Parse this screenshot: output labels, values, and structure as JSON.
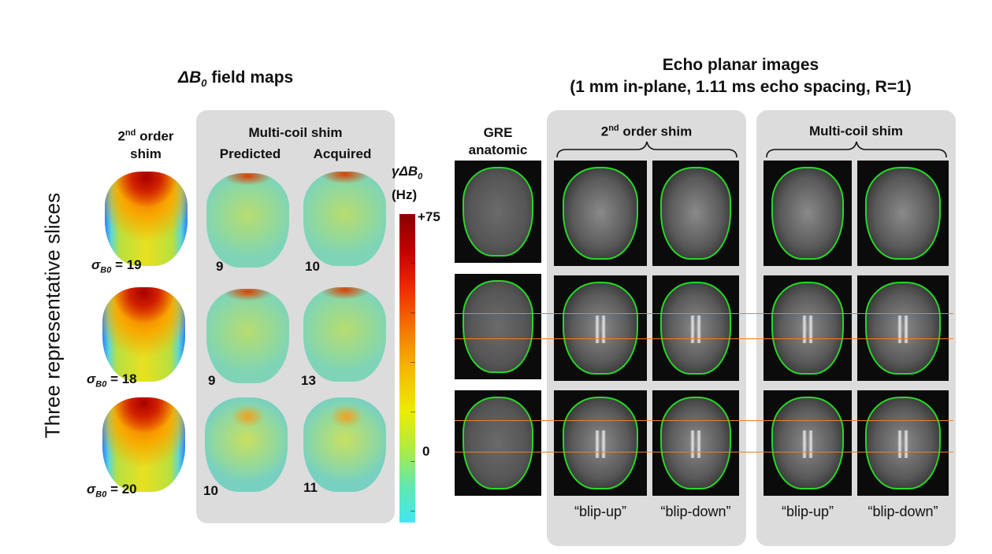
{
  "left_section": {
    "title_symbol": "ΔB",
    "title_sub": "0",
    "title_rest": " field maps",
    "col1_header_a": "2",
    "col1_header_sup": "nd",
    "col1_header_b": " order",
    "col1_header_c": "shim",
    "panel_title": "Multi-coil shim",
    "col2_header": "Predicted",
    "col3_header": "Acquired",
    "sigma_symbol": "σ",
    "sigma_sub": "B0",
    "rows": [
      {
        "sigma": "= 19",
        "predicted": "9",
        "acquired": "10"
      },
      {
        "sigma": "= 18",
        "predicted": "9",
        "acquired": "13"
      },
      {
        "sigma": "= 20",
        "predicted": "10",
        "acquired": "11"
      }
    ]
  },
  "colorbar": {
    "label_a": "γΔB",
    "label_sub": "0",
    "unit": "(Hz)",
    "top_tick": "+75",
    "zero_tick": "0"
  },
  "side_label": "Three representative slices",
  "right_section": {
    "title_line1": "Echo planar images",
    "title_line2": "(1 mm in-plane, 1.11 ms echo spacing, R=1)",
    "gre_label_1": "GRE",
    "gre_label_2": "anatomic",
    "group1_a": "2",
    "group1_sup": "nd",
    "group1_b": " order shim",
    "group2": "Multi-coil shim",
    "blip_up": "“blip-up”",
    "blip_down": "“blip-down”"
  },
  "colors": {
    "panel_bg": "#dcdcdc",
    "contour": "#27d827",
    "guide_line": "#f08020"
  }
}
